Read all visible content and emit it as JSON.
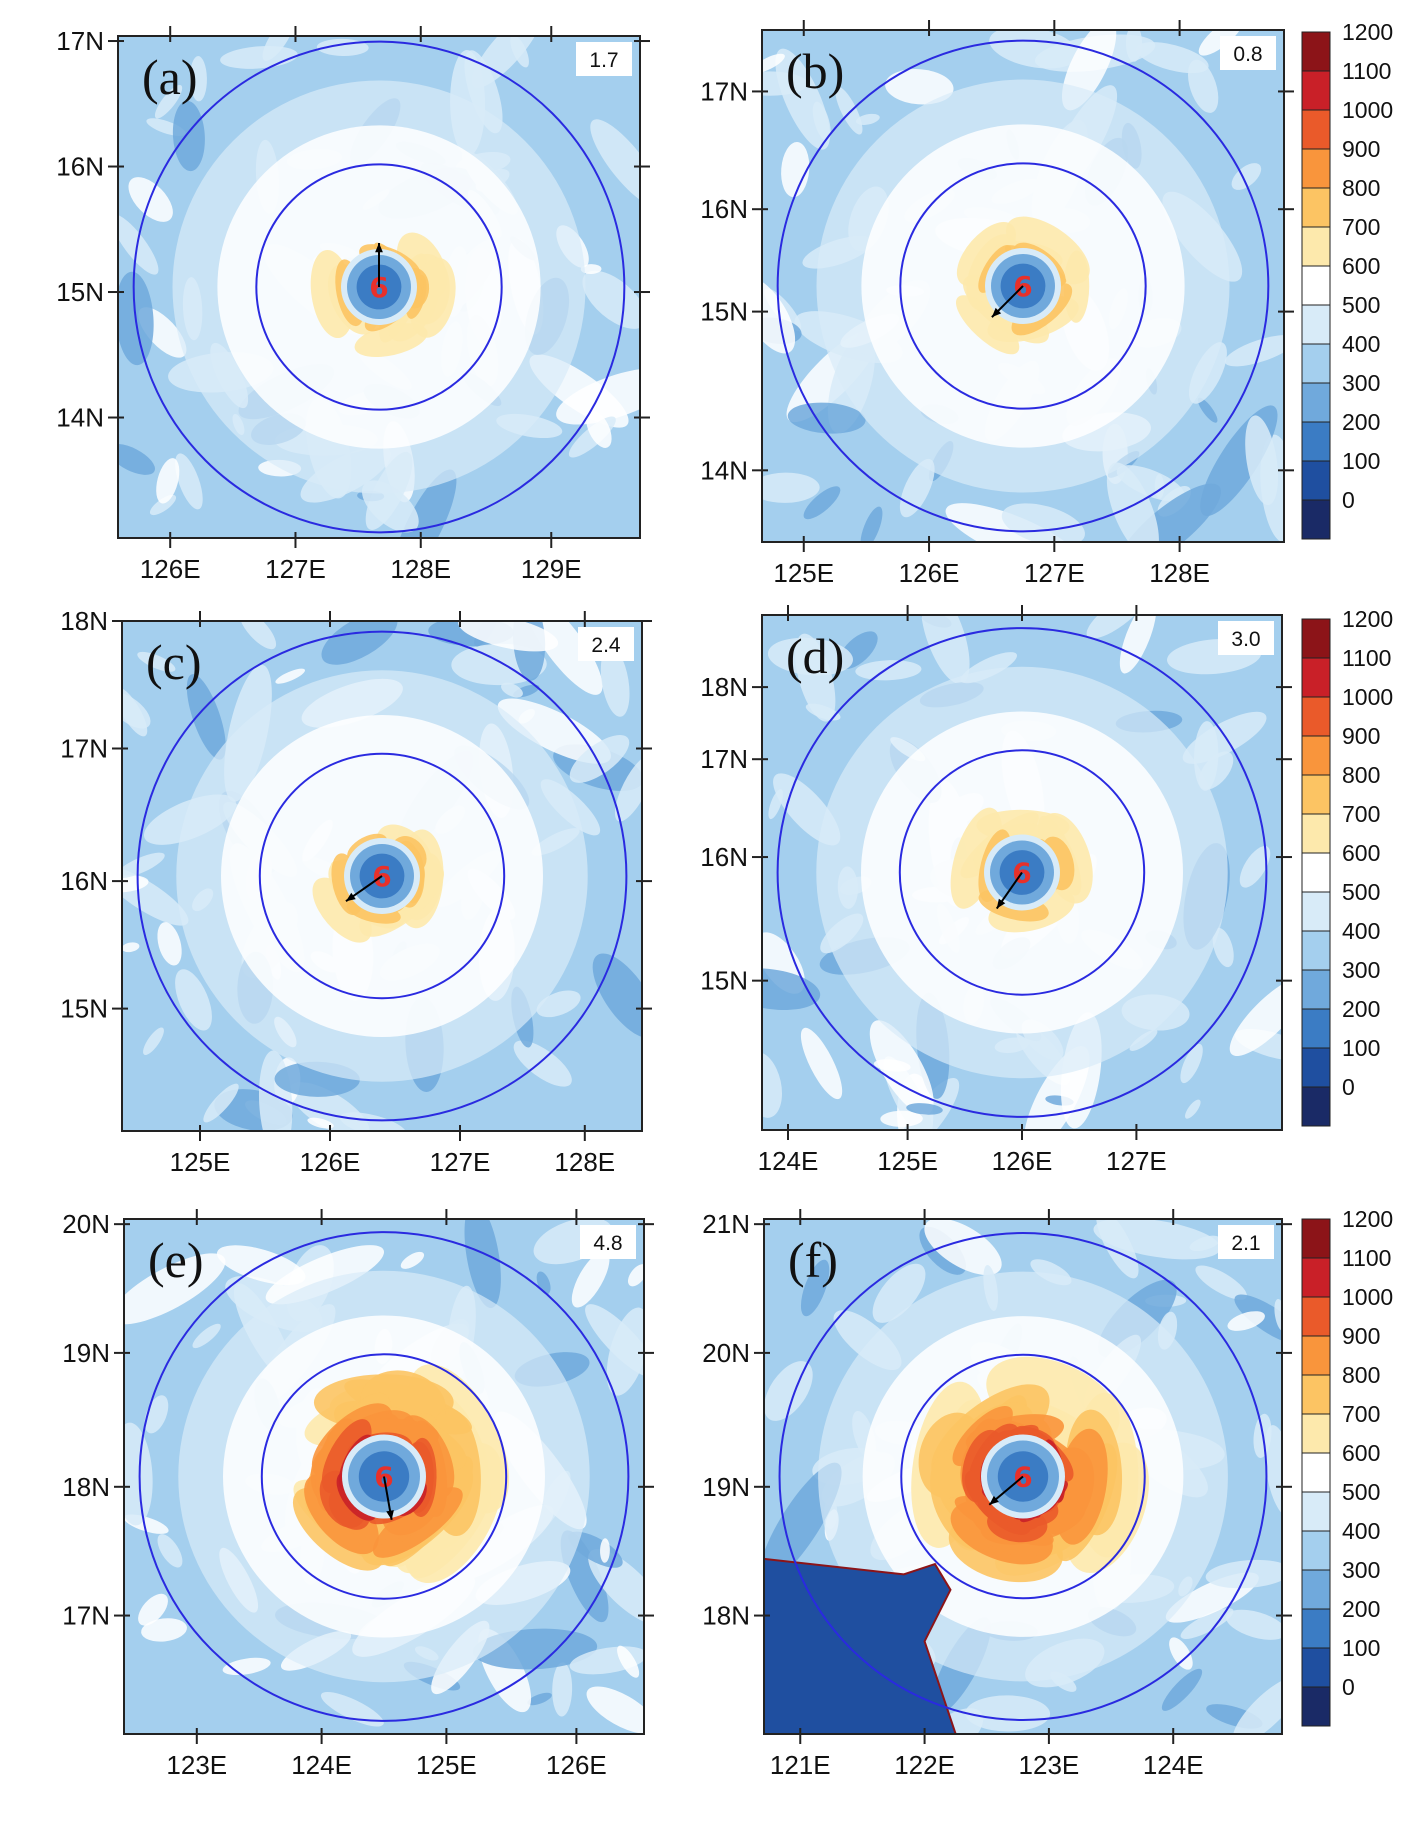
{
  "colorbar": {
    "levels": [
      "0",
      "100",
      "200",
      "300",
      "400",
      "500",
      "600",
      "700",
      "800",
      "900",
      "1000",
      "1100",
      "1200"
    ],
    "colors": [
      "#1a2a66",
      "#1f4fa0",
      "#3b7cc4",
      "#70a9dc",
      "#a4cfee",
      "#d8ebf8",
      "#ffffff",
      "#fde9ac",
      "#fcc463",
      "#f9953c",
      "#ea5a2a",
      "#c92028",
      "#8c1418"
    ]
  },
  "storm_symbol": "6",
  "panels": [
    {
      "id": "a",
      "letter": "(a)",
      "speed": "1.7",
      "lat_ticks": [
        "17N",
        "16N",
        "15N",
        "14N"
      ],
      "lon_ticks": [
        "126E",
        "127E",
        "128E",
        "129E"
      ],
      "intensity": 0.55,
      "motion_deg": 90,
      "land": false
    },
    {
      "id": "b",
      "letter": "(b)",
      "speed": "0.8",
      "lat_ticks": [
        "17N",
        "16N",
        "15N",
        "14N"
      ],
      "lon_ticks": [
        "125E",
        "126E",
        "127E",
        "128E"
      ],
      "intensity": 0.55,
      "motion_deg": 225,
      "land": false
    },
    {
      "id": "c",
      "letter": "(c)",
      "speed": "2.4",
      "lat_ticks": [
        "18N",
        "17N",
        "16N",
        "15N"
      ],
      "lon_ticks": [
        "125E",
        "126E",
        "127E",
        "128E"
      ],
      "intensity": 0.6,
      "motion_deg": 215,
      "land": false
    },
    {
      "id": "d",
      "letter": "(d)",
      "speed": "3.0",
      "lat_ticks": [
        "18N",
        "17N",
        "16N",
        "15N"
      ],
      "lon_ticks": [
        "124E",
        "125E",
        "126E",
        "127E"
      ],
      "intensity": 0.65,
      "motion_deg": 235,
      "land": false
    },
    {
      "id": "e",
      "letter": "(e)",
      "speed": "4.8",
      "lat_ticks": [
        "20N",
        "19N",
        "18N",
        "17N"
      ],
      "lon_ticks": [
        "123E",
        "124E",
        "125E",
        "126E"
      ],
      "intensity": 1.0,
      "motion_deg": 280,
      "land": false
    },
    {
      "id": "f",
      "letter": "(f)",
      "speed": "2.1",
      "lat_ticks": [
        "21N",
        "20N",
        "19N",
        "18N"
      ],
      "lon_ticks": [
        "121E",
        "122E",
        "123E",
        "124E"
      ],
      "intensity": 1.05,
      "motion_deg": 220,
      "land": true
    }
  ]
}
